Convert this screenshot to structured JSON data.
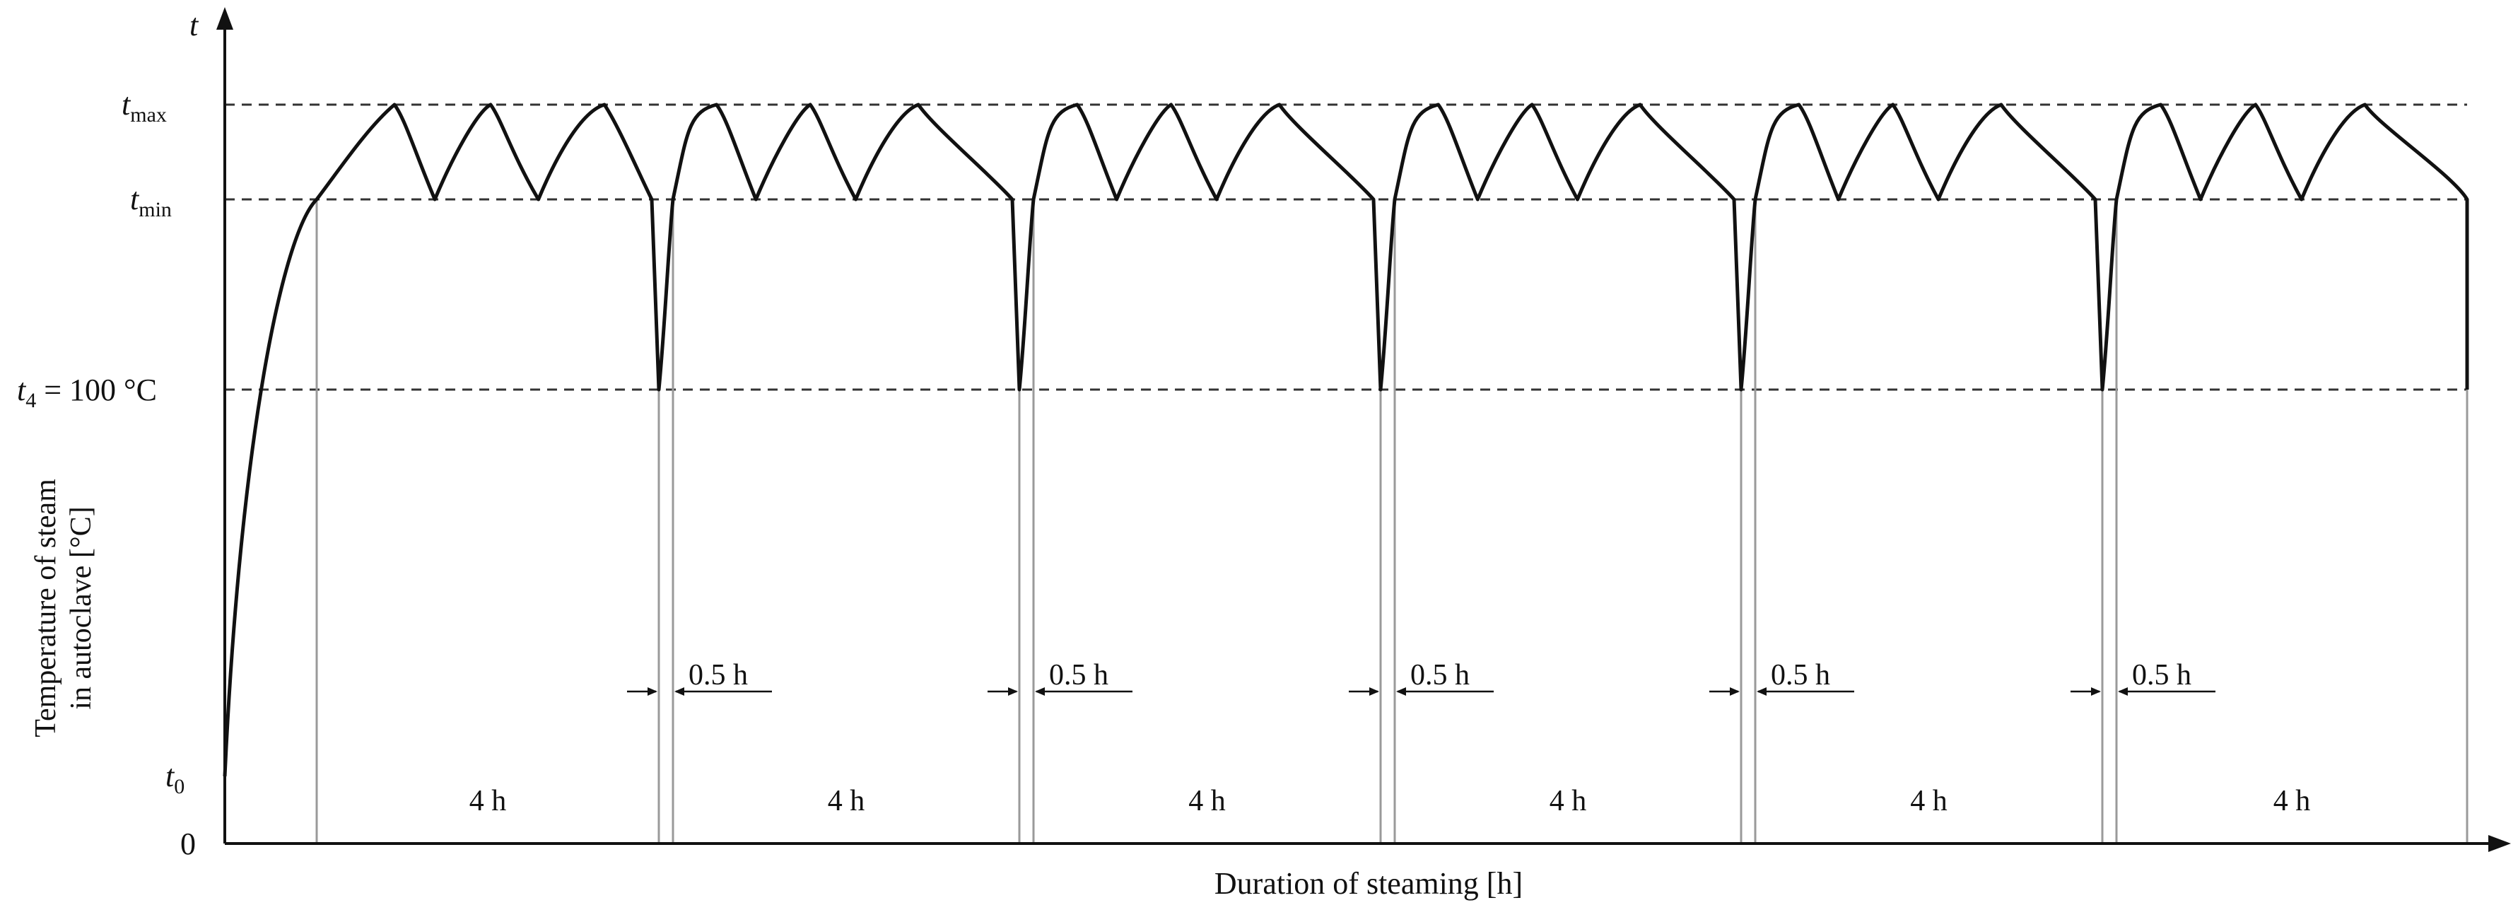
{
  "axes": {
    "y_symbol": "t",
    "x_label": "Duration of steaming [h]",
    "y_label_line1": "Temperature of steam",
    "y_label_line2": "in autoclave [°C]",
    "origin_label": "0"
  },
  "levels": {
    "t_max": {
      "base": "t",
      "sub": "max"
    },
    "t_min": {
      "base": "t",
      "sub": "min"
    },
    "t_4": {
      "base": "t",
      "sub": "4",
      "suffix": " = 100 °C"
    },
    "t_0": {
      "base": "t",
      "sub": "0"
    }
  },
  "cycles": {
    "count": 6,
    "duration_label": "4 h",
    "gap_label": "0.5 h",
    "gap_count": 5
  }
}
